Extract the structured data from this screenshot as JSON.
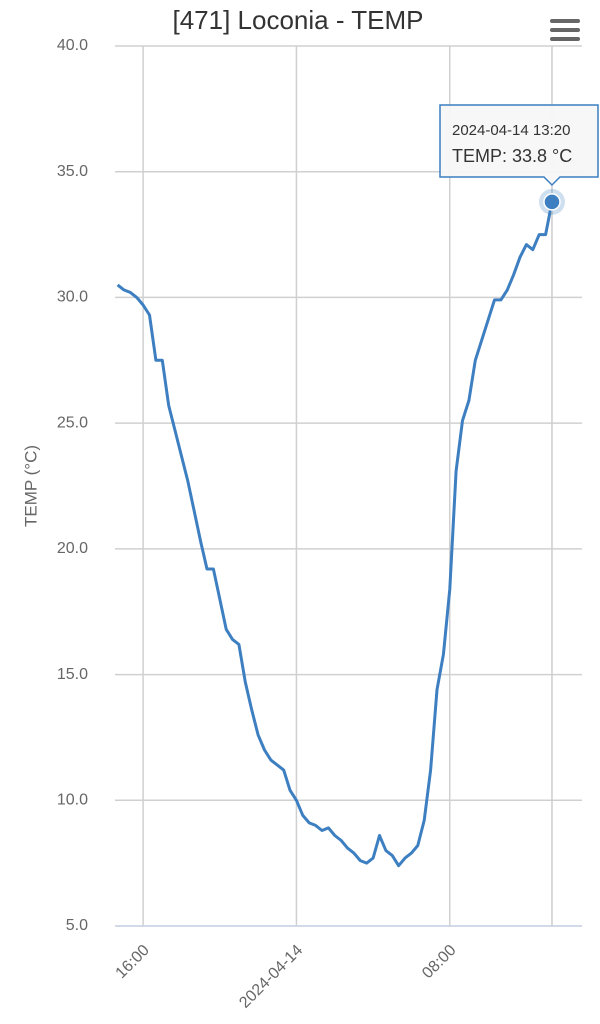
{
  "chart_data": {
    "type": "line",
    "title": "[471] Loconia - TEMP",
    "y_label": "TEMP (°C)",
    "x": [
      "2024-04-13 14:40",
      "2024-04-13 15:00",
      "2024-04-13 15:20",
      "2024-04-13 15:40",
      "2024-04-13 16:00",
      "2024-04-13 16:20",
      "2024-04-13 16:40",
      "2024-04-13 17:00",
      "2024-04-13 17:20",
      "2024-04-13 17:40",
      "2024-04-13 18:00",
      "2024-04-13 18:20",
      "2024-04-13 18:40",
      "2024-04-13 19:00",
      "2024-04-13 19:20",
      "2024-04-13 19:40",
      "2024-04-13 20:00",
      "2024-04-13 20:20",
      "2024-04-13 20:40",
      "2024-04-13 21:00",
      "2024-04-13 21:20",
      "2024-04-13 21:40",
      "2024-04-13 22:00",
      "2024-04-13 22:20",
      "2024-04-13 22:40",
      "2024-04-13 23:00",
      "2024-04-13 23:20",
      "2024-04-13 23:40",
      "2024-04-14 00:00",
      "2024-04-14 00:20",
      "2024-04-14 00:40",
      "2024-04-14 01:00",
      "2024-04-14 01:20",
      "2024-04-14 01:40",
      "2024-04-14 02:00",
      "2024-04-14 02:20",
      "2024-04-14 02:40",
      "2024-04-14 03:00",
      "2024-04-14 03:20",
      "2024-04-14 03:40",
      "2024-04-14 04:00",
      "2024-04-14 04:20",
      "2024-04-14 04:40",
      "2024-04-14 05:00",
      "2024-04-14 05:20",
      "2024-04-14 05:40",
      "2024-04-14 06:00",
      "2024-04-14 06:20",
      "2024-04-14 06:40",
      "2024-04-14 07:00",
      "2024-04-14 07:20",
      "2024-04-14 07:40",
      "2024-04-14 08:00",
      "2024-04-14 08:20",
      "2024-04-14 08:40",
      "2024-04-14 09:00",
      "2024-04-14 09:20",
      "2024-04-14 09:40",
      "2024-04-14 10:00",
      "2024-04-14 10:20",
      "2024-04-14 10:40",
      "2024-04-14 11:00",
      "2024-04-14 11:20",
      "2024-04-14 11:40",
      "2024-04-14 12:00",
      "2024-04-14 12:20",
      "2024-04-14 12:40",
      "2024-04-14 13:00",
      "2024-04-14 13:20"
    ],
    "series": [
      {
        "name": "TEMP",
        "color": "#3d7fc1",
        "values": [
          30.5,
          30.3,
          30.2,
          30.0,
          29.7,
          29.3,
          27.5,
          27.5,
          25.7,
          24.7,
          23.7,
          22.7,
          21.5,
          20.3,
          19.2,
          19.2,
          18.0,
          16.8,
          16.4,
          16.2,
          14.7,
          13.6,
          12.6,
          12.0,
          11.6,
          11.4,
          11.2,
          10.4,
          10.0,
          9.4,
          9.1,
          9.0,
          8.8,
          8.9,
          8.6,
          8.4,
          8.1,
          7.9,
          7.6,
          7.5,
          7.7,
          8.6,
          8.0,
          7.8,
          7.4,
          7.7,
          7.9,
          8.2,
          9.2,
          11.2,
          14.4,
          15.8,
          18.4,
          23.1,
          25.1,
          25.9,
          27.5,
          28.3,
          29.1,
          29.9,
          29.9,
          30.3,
          30.9,
          31.6,
          32.1,
          31.9,
          32.5,
          32.5,
          33.8
        ]
      }
    ],
    "xlim": [
      "2024-04-13 14:32",
      "2024-04-14 14:54"
    ],
    "xticks": [
      {
        "value": "2024-04-13 16:00",
        "label": "16:00"
      },
      {
        "value": "2024-04-14 00:00",
        "label": "2024-04-14"
      },
      {
        "value": "2024-04-14 08:00",
        "label": "08:00"
      }
    ],
    "ylim": [
      5,
      40
    ],
    "yticks": [
      {
        "value": 5,
        "label": "5.0"
      },
      {
        "value": 10,
        "label": "10.0"
      },
      {
        "value": 15,
        "label": "15.0"
      },
      {
        "value": 20,
        "label": "20.0"
      },
      {
        "value": 25,
        "label": "25.0"
      },
      {
        "value": 30,
        "label": "30.0"
      },
      {
        "value": 35,
        "label": "35.0"
      },
      {
        "value": 40,
        "label": "40.0"
      }
    ],
    "grid": true,
    "tooltip": {
      "x": "2024-04-14 13:20",
      "text": "TEMP: 33.8 °C"
    }
  }
}
